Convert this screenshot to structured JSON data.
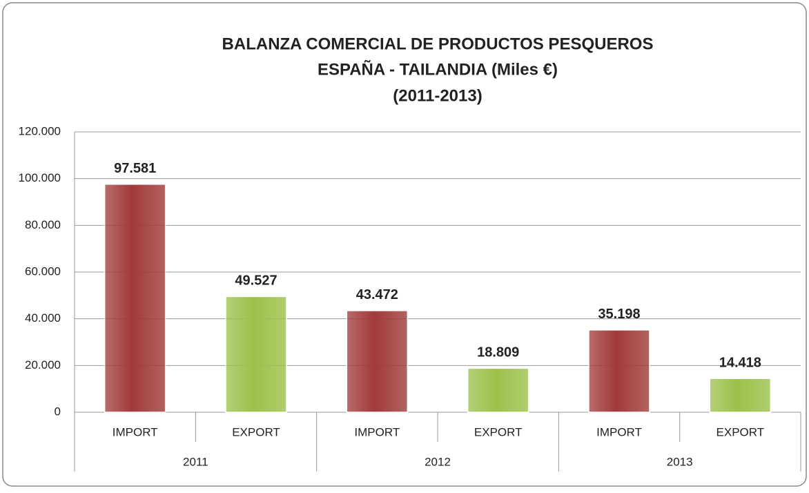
{
  "chart_data": {
    "type": "bar",
    "title": [
      "BALANZA COMERCIAL DE PRODUCTOS PESQUEROS",
      "ESPAÑA -  TAILANDIA (Miles €)",
      "(2011-2013)"
    ],
    "categories": [
      "IMPORT",
      "EXPORT",
      "IMPORT",
      "EXPORT",
      "IMPORT",
      "EXPORT"
    ],
    "groups": [
      "2011",
      "2012",
      "2013"
    ],
    "values": [
      97581,
      49527,
      43472,
      18809,
      35198,
      14418
    ],
    "value_labels": [
      "97.581",
      "49.527",
      "43.472",
      "18.809",
      "35.198",
      "14.418"
    ],
    "colors": [
      "#a03b39",
      "#9bc14a",
      "#a03b39",
      "#9bc14a",
      "#a03b39",
      "#9bc14a"
    ],
    "ylim": [
      0,
      120000
    ],
    "yticks": [
      0,
      {
        "value": 20000,
        "label": "20.000"
      },
      {
        "value": 40000,
        "label": "40.000"
      },
      {
        "value": 60000,
        "label": "60.000"
      },
      {
        "value": 80000,
        "label": "80.000"
      },
      {
        "value": 100000,
        "label": "100.000"
      },
      {
        "value": 120000,
        "label": "120.000"
      }
    ],
    "grid": true
  }
}
